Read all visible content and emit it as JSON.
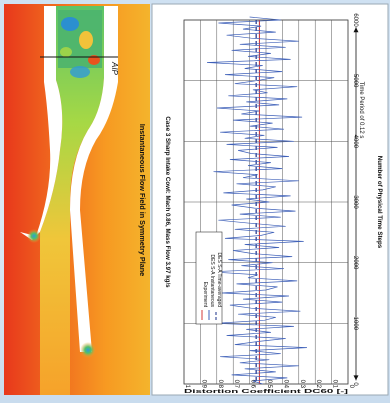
{
  "flow_field": {
    "title": "Instantaneous Flow Field in Symmetry Plane",
    "aip_label": "AIP"
  },
  "chart_data": {
    "type": "line",
    "title": "Case 3 Sharp Intake Cowl: Mach 0.86, Mass Flow 3.97 kg/s",
    "xlabel": "Number of Physical Time Steps",
    "ylabel": "Distortion Coefficient DC60 [-]",
    "xlim": [
      0,
      6000
    ],
    "ylim": [
      0,
      1
    ],
    "x_ticks": [
      "0",
      "1000",
      "2000",
      "3000",
      "4000",
      "5000",
      "6000"
    ],
    "y_ticks": [
      "0",
      "0.1",
      "0.2",
      "0.3",
      "0.4",
      "0.5",
      "0.6",
      "0.7",
      "0.8",
      "0.9",
      "1"
    ],
    "grid": true,
    "legend": {
      "placement": "upper-left",
      "entries": [
        "Experiment",
        "DES S-A Instantaneous",
        "DES S-A Time-averaged"
      ]
    },
    "annotation": "Time Period of 0.12 s",
    "series": [
      {
        "name": "Experiment",
        "style": "solid",
        "color": "#d33a3a",
        "y_constant": 0.54
      },
      {
        "name": "DES S-A Time-averaged",
        "style": "dashed",
        "color": "#1a2f8a",
        "y_constant": 0.56
      },
      {
        "name": "DES S-A Instantaneous",
        "style": "solid",
        "color": "#3d5fb8",
        "x_start": 0,
        "x_step": 50,
        "values": [
          0.52,
          0.58,
          0.37,
          0.71,
          0.44,
          0.63,
          0.3,
          0.66,
          0.48,
          0.78,
          0.41,
          0.6,
          0.25,
          0.69,
          0.55,
          0.38,
          0.74,
          0.47,
          0.62,
          0.33,
          0.81,
          0.51,
          0.44,
          0.67,
          0.29,
          0.59,
          0.72,
          0.4,
          0.64,
          0.36,
          0.77,
          0.5,
          0.43,
          0.68,
          0.31,
          0.61,
          0.55,
          0.84,
          0.39,
          0.65,
          0.46,
          0.73,
          0.34,
          0.58,
          0.7,
          0.42,
          0.63,
          0.27,
          0.75,
          0.53,
          0.45,
          0.69,
          0.38,
          0.6,
          0.79,
          0.41,
          0.66,
          0.32,
          0.57,
          0.71,
          0.48,
          0.62,
          0.35,
          0.76,
          0.52,
          0.44,
          0.68,
          0.3,
          0.64,
          0.55,
          0.82,
          0.4,
          0.61,
          0.47,
          0.72,
          0.36,
          0.59,
          0.67,
          0.43,
          0.74,
          0.33,
          0.63,
          0.51,
          0.78,
          0.39,
          0.6,
          0.46,
          0.7,
          0.28,
          0.65,
          0.54,
          0.8,
          0.42,
          0.62,
          0.37,
          0.73,
          0.49,
          0.58,
          0.31,
          0.69,
          0.56,
          0.45,
          0.75,
          0.4,
          0.63,
          0.52,
          0.86,
          0.35,
          0.61,
          0.47,
          0.71,
          0.38,
          0.66,
          0.3,
          0.59,
          0.74,
          0.44,
          0.64,
          0.53,
          0.79,
          0.41,
          0.6
        ]
      }
    ]
  }
}
